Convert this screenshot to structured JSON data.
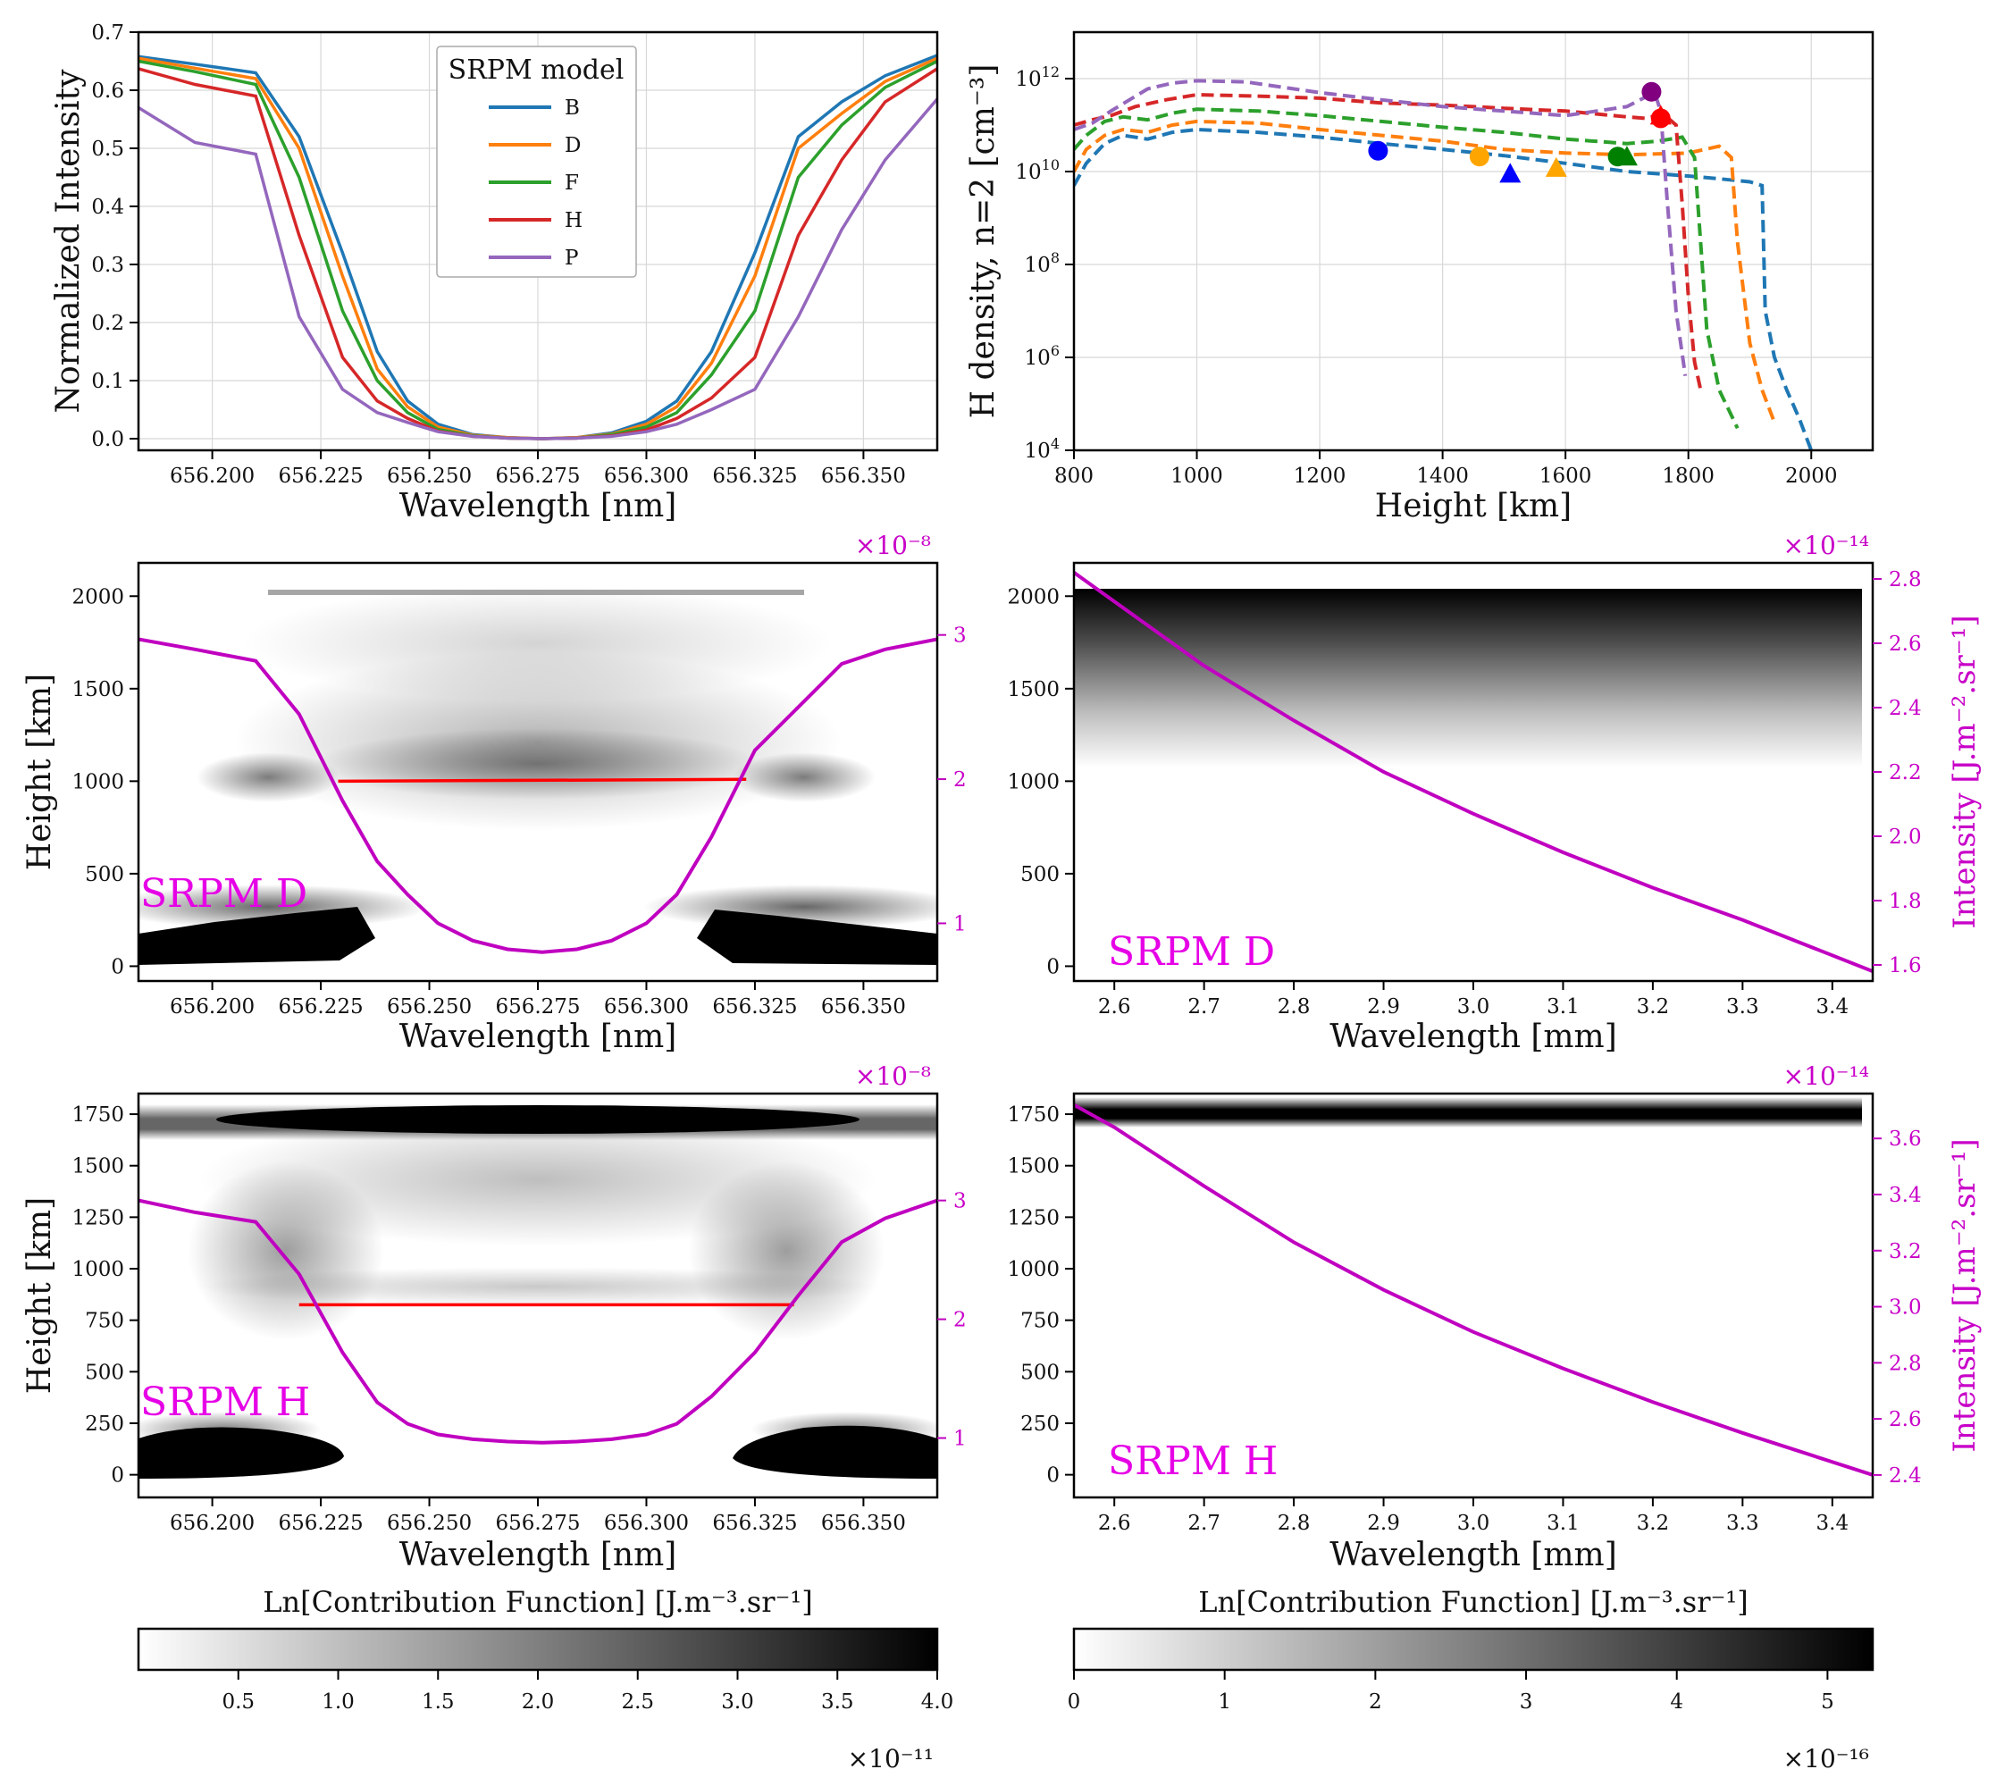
{
  "colors": {
    "B": "#1f77b4",
    "D": "#ff7f0e",
    "F": "#2ca02c",
    "H": "#d62728",
    "P": "#9467bd",
    "magenta": "#c000c0",
    "red": "#ff0000"
  },
  "chart_data": [
    {
      "type": "line",
      "panel": "a",
      "xlabel": "Wavelength [nm]",
      "ylabel": "Normalized Intensity",
      "xlim": [
        656.183,
        656.367
      ],
      "ylim": [
        -0.02,
        0.7
      ],
      "xticks": [
        "656.200",
        "656.225",
        "656.250",
        "656.275",
        "656.300",
        "656.325",
        "656.350"
      ],
      "yticks": [
        "0.0",
        "0.1",
        "0.2",
        "0.3",
        "0.4",
        "0.5",
        "0.6",
        "0.7"
      ],
      "legend_title": "SRPM model",
      "legend_position": "top-center",
      "grid": true,
      "x": [
        656.183,
        656.196,
        656.21,
        656.22,
        656.23,
        656.238,
        656.245,
        656.252,
        656.26,
        656.268,
        656.276,
        656.284,
        656.292,
        656.3,
        656.307,
        656.315,
        656.325,
        656.335,
        656.345,
        656.355,
        656.367
      ],
      "series": [
        {
          "name": "B",
          "values": [
            0.658,
            0.645,
            0.63,
            0.52,
            0.32,
            0.15,
            0.065,
            0.025,
            0.007,
            0.002,
            0.0,
            0.002,
            0.01,
            0.03,
            0.065,
            0.15,
            0.32,
            0.52,
            0.58,
            0.625,
            0.66
          ]
        },
        {
          "name": "D",
          "values": [
            0.655,
            0.638,
            0.62,
            0.5,
            0.28,
            0.12,
            0.055,
            0.02,
            0.006,
            0.002,
            0.0,
            0.002,
            0.008,
            0.025,
            0.055,
            0.13,
            0.28,
            0.5,
            0.56,
            0.615,
            0.655
          ]
        },
        {
          "name": "F",
          "values": [
            0.65,
            0.632,
            0.61,
            0.45,
            0.22,
            0.1,
            0.045,
            0.016,
            0.005,
            0.001,
            0.0,
            0.001,
            0.007,
            0.02,
            0.045,
            0.11,
            0.22,
            0.45,
            0.54,
            0.605,
            0.65
          ]
        },
        {
          "name": "H",
          "values": [
            0.637,
            0.61,
            0.59,
            0.35,
            0.14,
            0.065,
            0.035,
            0.013,
            0.004,
            0.001,
            0.0,
            0.001,
            0.005,
            0.015,
            0.035,
            0.07,
            0.14,
            0.35,
            0.48,
            0.58,
            0.637
          ]
        },
        {
          "name": "P",
          "values": [
            0.57,
            0.51,
            0.49,
            0.21,
            0.085,
            0.045,
            0.028,
            0.012,
            0.004,
            0.001,
            0.0,
            0.001,
            0.004,
            0.012,
            0.025,
            0.05,
            0.085,
            0.21,
            0.36,
            0.48,
            0.585
          ]
        }
      ]
    },
    {
      "type": "line",
      "panel": "b",
      "xlabel": "Height [km]",
      "ylabel": "H density, n=2 [cm⁻³]",
      "yscale": "log",
      "xlim": [
        800,
        2100
      ],
      "ylim": [
        10000,
        10000000000000.0
      ],
      "xticks": [
        "800",
        "1000",
        "1200",
        "1400",
        "1600",
        "1800",
        "2000"
      ],
      "yticks": [
        {
          "base": "10",
          "exp": "4"
        },
        {
          "base": "10",
          "exp": "6"
        },
        {
          "base": "10",
          "exp": "8"
        },
        {
          "base": "10",
          "exp": "10"
        },
        {
          "base": "10",
          "exp": "12"
        }
      ],
      "grid": true,
      "series": [
        {
          "name": "B",
          "x": [
            800,
            820,
            850,
            880,
            920,
            960,
            1000,
            1100,
            1200,
            1300,
            1400,
            1500,
            1600,
            1700,
            1800,
            1850,
            1900,
            1920,
            1925,
            1940,
            1960,
            1980,
            2000
          ],
          "y": [
            5000000000.0,
            15000000000.0,
            40000000000.0,
            60000000000.0,
            50000000000.0,
            70000000000.0,
            80000000000.0,
            70000000000.0,
            55000000000.0,
            40000000000.0,
            30000000000.0,
            22000000000.0,
            15000000000.0,
            10000000000.0,
            8000000000.0,
            7000000000.0,
            6000000000.0,
            5000000000.0,
            10000000.0,
            1000000.0,
            200000.0,
            50000.0,
            10000.0
          ]
        },
        {
          "name": "D",
          "x": [
            800,
            820,
            850,
            880,
            920,
            960,
            1000,
            1100,
            1200,
            1300,
            1400,
            1500,
            1600,
            1700,
            1800,
            1850,
            1870,
            1880,
            1900,
            1920,
            1940
          ],
          "y": [
            10000000000.0,
            30000000000.0,
            60000000000.0,
            80000000000.0,
            70000000000.0,
            100000000000.0,
            120000000000.0,
            110000000000.0,
            80000000000.0,
            60000000000.0,
            45000000000.0,
            30000000000.0,
            25000000000.0,
            23000000000.0,
            25000000000.0,
            35000000000.0,
            20000000000.0,
            300000000.0,
            2000000.0,
            200000.0,
            40000.0
          ]
        },
        {
          "name": "F",
          "x": [
            800,
            820,
            850,
            880,
            920,
            960,
            1000,
            1100,
            1200,
            1300,
            1400,
            1500,
            1600,
            1700,
            1750,
            1790,
            1810,
            1820,
            1830,
            1850,
            1880
          ],
          "y": [
            30000000000.0,
            60000000000.0,
            120000000000.0,
            150000000000.0,
            130000000000.0,
            180000000000.0,
            220000000000.0,
            200000000000.0,
            160000000000.0,
            120000000000.0,
            90000000000.0,
            70000000000.0,
            50000000000.0,
            40000000000.0,
            45000000000.0,
            55000000000.0,
            20000000000.0,
            300000000.0,
            4000000.0,
            200000.0,
            30000.0
          ]
        },
        {
          "name": "H",
          "x": [
            800,
            830,
            860,
            900,
            950,
            1000,
            1100,
            1200,
            1300,
            1400,
            1500,
            1600,
            1700,
            1730,
            1760,
            1780,
            1790,
            1800,
            1810,
            1820
          ],
          "y": [
            100000000000.0,
            130000000000.0,
            160000000000.0,
            250000000000.0,
            350000000000.0,
            450000000000.0,
            420000000000.0,
            380000000000.0,
            300000000000.0,
            270000000000.0,
            230000000000.0,
            200000000000.0,
            150000000000.0,
            140000000000.0,
            170000000000.0,
            100000000000.0,
            2000000000.0,
            20000000.0,
            800000.0,
            200000.0
          ]
        },
        {
          "name": "P",
          "x": [
            800,
            830,
            860,
            920,
            960,
            1000,
            1080,
            1200,
            1300,
            1400,
            1500,
            1600,
            1700,
            1730,
            1745,
            1755,
            1765,
            1780,
            1795
          ],
          "y": [
            80000000000.0,
            110000000000.0,
            200000000000.0,
            600000000000.0,
            800000000000.0,
            900000000000.0,
            850000000000.0,
            500000000000.0,
            350000000000.0,
            250000000000.0,
            200000000000.0,
            160000000000.0,
            250000000000.0,
            400000000000.0,
            500000000000.0,
            200000000000.0,
            3000000000.0,
            10000000.0,
            400000.0
          ]
        }
      ],
      "markers": [
        {
          "series": "B",
          "shape": "circle",
          "x": 1295,
          "y": 28000000000.0
        },
        {
          "series": "D",
          "shape": "circle",
          "x": 1460,
          "y": 21000000000.0
        },
        {
          "series": "F",
          "shape": "circle",
          "x": 1685,
          "y": 21000000000.0
        },
        {
          "series": "H",
          "shape": "circle",
          "x": 1755,
          "y": 140000000000.0
        },
        {
          "series": "P",
          "shape": "circle",
          "x": 1740,
          "y": 520000000000.0
        },
        {
          "series": "B",
          "shape": "triangle",
          "x": 1510,
          "y": 9000000000.0
        },
        {
          "series": "D",
          "shape": "triangle",
          "x": 1585,
          "y": 12000000000.0
        },
        {
          "series": "F",
          "shape": "triangle",
          "x": 1700,
          "y": 21000000000.0
        },
        {
          "series": "H",
          "shape": "triangle",
          "x": 1755,
          "y": 160000000000.0
        }
      ]
    },
    {
      "type": "heatmap",
      "panel": "c",
      "label": "SRPM D",
      "xlabel": "Wavelength [nm]",
      "ylabel": "Height [km]",
      "xlim": [
        656.183,
        656.367
      ],
      "ylim": [
        -80,
        2180
      ],
      "xticks": [
        "656.200",
        "656.225",
        "656.250",
        "656.275",
        "656.300",
        "656.325",
        "656.350"
      ],
      "yticks": [
        "0",
        "500",
        "1000",
        "1500",
        "2000"
      ],
      "right_ticks": [
        "1",
        "2",
        "3"
      ],
      "right_multiplier": "×10⁻⁸",
      "profile_right_ylim": [
        0.6,
        3.5
      ],
      "profile_x": [
        656.183,
        656.196,
        656.21,
        656.22,
        656.23,
        656.238,
        656.245,
        656.252,
        656.26,
        656.268,
        656.276,
        656.284,
        656.292,
        656.3,
        656.307,
        656.315,
        656.325,
        656.335,
        656.345,
        656.355,
        656.367
      ],
      "profile_y": [
        2.97,
        2.9,
        2.82,
        2.45,
        1.85,
        1.43,
        1.2,
        1.0,
        0.88,
        0.82,
        0.8,
        0.82,
        0.88,
        1.0,
        1.2,
        1.6,
        2.2,
        2.5,
        2.8,
        2.9,
        2.97
      ],
      "formation_line": {
        "x": [
          656.229,
          656.323
        ],
        "y": [
          1000,
          1010
        ]
      }
    },
    {
      "type": "heatmap",
      "panel": "d",
      "label": "SRPM D",
      "xlabel": "Wavelength [mm]",
      "ylabel": "Intensity [J.m⁻².sr⁻¹]",
      "xlim": [
        2.555,
        3.445
      ],
      "ylim": [
        -80,
        2180
      ],
      "xticks": [
        "2.6",
        "2.7",
        "2.8",
        "2.9",
        "3.0",
        "3.1",
        "3.2",
        "3.3",
        "3.4"
      ],
      "yticks": [
        "0",
        "500",
        "1000",
        "1500",
        "2000"
      ],
      "right_ticks": [
        "1.6",
        "1.8",
        "2.0",
        "2.2",
        "2.4",
        "2.6",
        "2.8"
      ],
      "right_multiplier": "×10⁻¹⁴",
      "profile_right_ylim": [
        1.55,
        2.85
      ],
      "profile_x": [
        2.555,
        2.6,
        2.7,
        2.8,
        2.9,
        3.0,
        3.1,
        3.2,
        3.3,
        3.445
      ],
      "profile_y": [
        2.82,
        2.73,
        2.53,
        2.36,
        2.2,
        2.07,
        1.95,
        1.84,
        1.74,
        1.58
      ]
    },
    {
      "type": "heatmap",
      "panel": "e",
      "label": "SRPM H",
      "xlabel": "Wavelength [nm]",
      "ylabel": "Height [km]",
      "xlim": [
        656.183,
        656.367
      ],
      "ylim": [
        -110,
        1850
      ],
      "xticks": [
        "656.200",
        "656.225",
        "656.250",
        "656.275",
        "656.300",
        "656.325",
        "656.350"
      ],
      "yticks": [
        "0",
        "250",
        "500",
        "750",
        "1000",
        "1250",
        "1500",
        "1750"
      ],
      "right_ticks": [
        "1",
        "2",
        "3"
      ],
      "right_multiplier": "×10⁻⁸",
      "profile_right_ylim": [
        0.5,
        3.9
      ],
      "profile_x": [
        656.183,
        656.196,
        656.21,
        656.22,
        656.23,
        656.238,
        656.245,
        656.252,
        656.26,
        656.268,
        656.276,
        656.284,
        656.292,
        656.3,
        656.307,
        656.315,
        656.325,
        656.335,
        656.345,
        656.355,
        656.367
      ],
      "profile_y": [
        3.0,
        2.9,
        2.82,
        2.38,
        1.72,
        1.3,
        1.12,
        1.03,
        0.99,
        0.97,
        0.96,
        0.97,
        0.99,
        1.03,
        1.12,
        1.35,
        1.72,
        2.2,
        2.65,
        2.85,
        3.0
      ],
      "formation_line": {
        "x": [
          656.22,
          656.334
        ],
        "y": [
          825,
          825
        ]
      }
    },
    {
      "type": "heatmap",
      "panel": "f",
      "label": "SRPM H",
      "xlabel": "Wavelength [mm]",
      "ylabel": "Intensity [J.m⁻².sr⁻¹]",
      "xlim": [
        2.555,
        3.445
      ],
      "ylim": [
        -110,
        1850
      ],
      "xticks": [
        "2.6",
        "2.7",
        "2.8",
        "2.9",
        "3.0",
        "3.1",
        "3.2",
        "3.3",
        "3.4"
      ],
      "yticks": [
        "0",
        "250",
        "500",
        "750",
        "1000",
        "1250",
        "1500",
        "1750"
      ],
      "right_ticks": [
        "2.4",
        "2.6",
        "2.8",
        "3.0",
        "3.2",
        "3.4",
        "3.6"
      ],
      "right_multiplier": "×10⁻¹⁴",
      "profile_right_ylim": [
        2.32,
        3.76
      ],
      "profile_x": [
        2.555,
        2.6,
        2.7,
        2.8,
        2.9,
        3.0,
        3.1,
        3.2,
        3.3,
        3.445
      ],
      "profile_y": [
        3.72,
        3.64,
        3.43,
        3.23,
        3.06,
        2.91,
        2.78,
        2.66,
        2.55,
        2.4
      ]
    },
    {
      "type": "colorbar",
      "panel": "cb-left",
      "title": "Ln[Contribution Function] [J.m⁻³.sr⁻¹]",
      "range": [
        0,
        4.0
      ],
      "ticks": [
        "0.5",
        "1.0",
        "1.5",
        "2.0",
        "2.5",
        "3.0",
        "3.5",
        "4.0"
      ],
      "multiplier": "×10⁻¹¹"
    },
    {
      "type": "colorbar",
      "panel": "cb-right",
      "title": "Ln[Contribution Function] [J.m⁻³.sr⁻¹]",
      "range": [
        0,
        5.3
      ],
      "ticks": [
        "0",
        "1",
        "2",
        "3",
        "4",
        "5"
      ],
      "multiplier": "×10⁻¹⁶"
    }
  ]
}
